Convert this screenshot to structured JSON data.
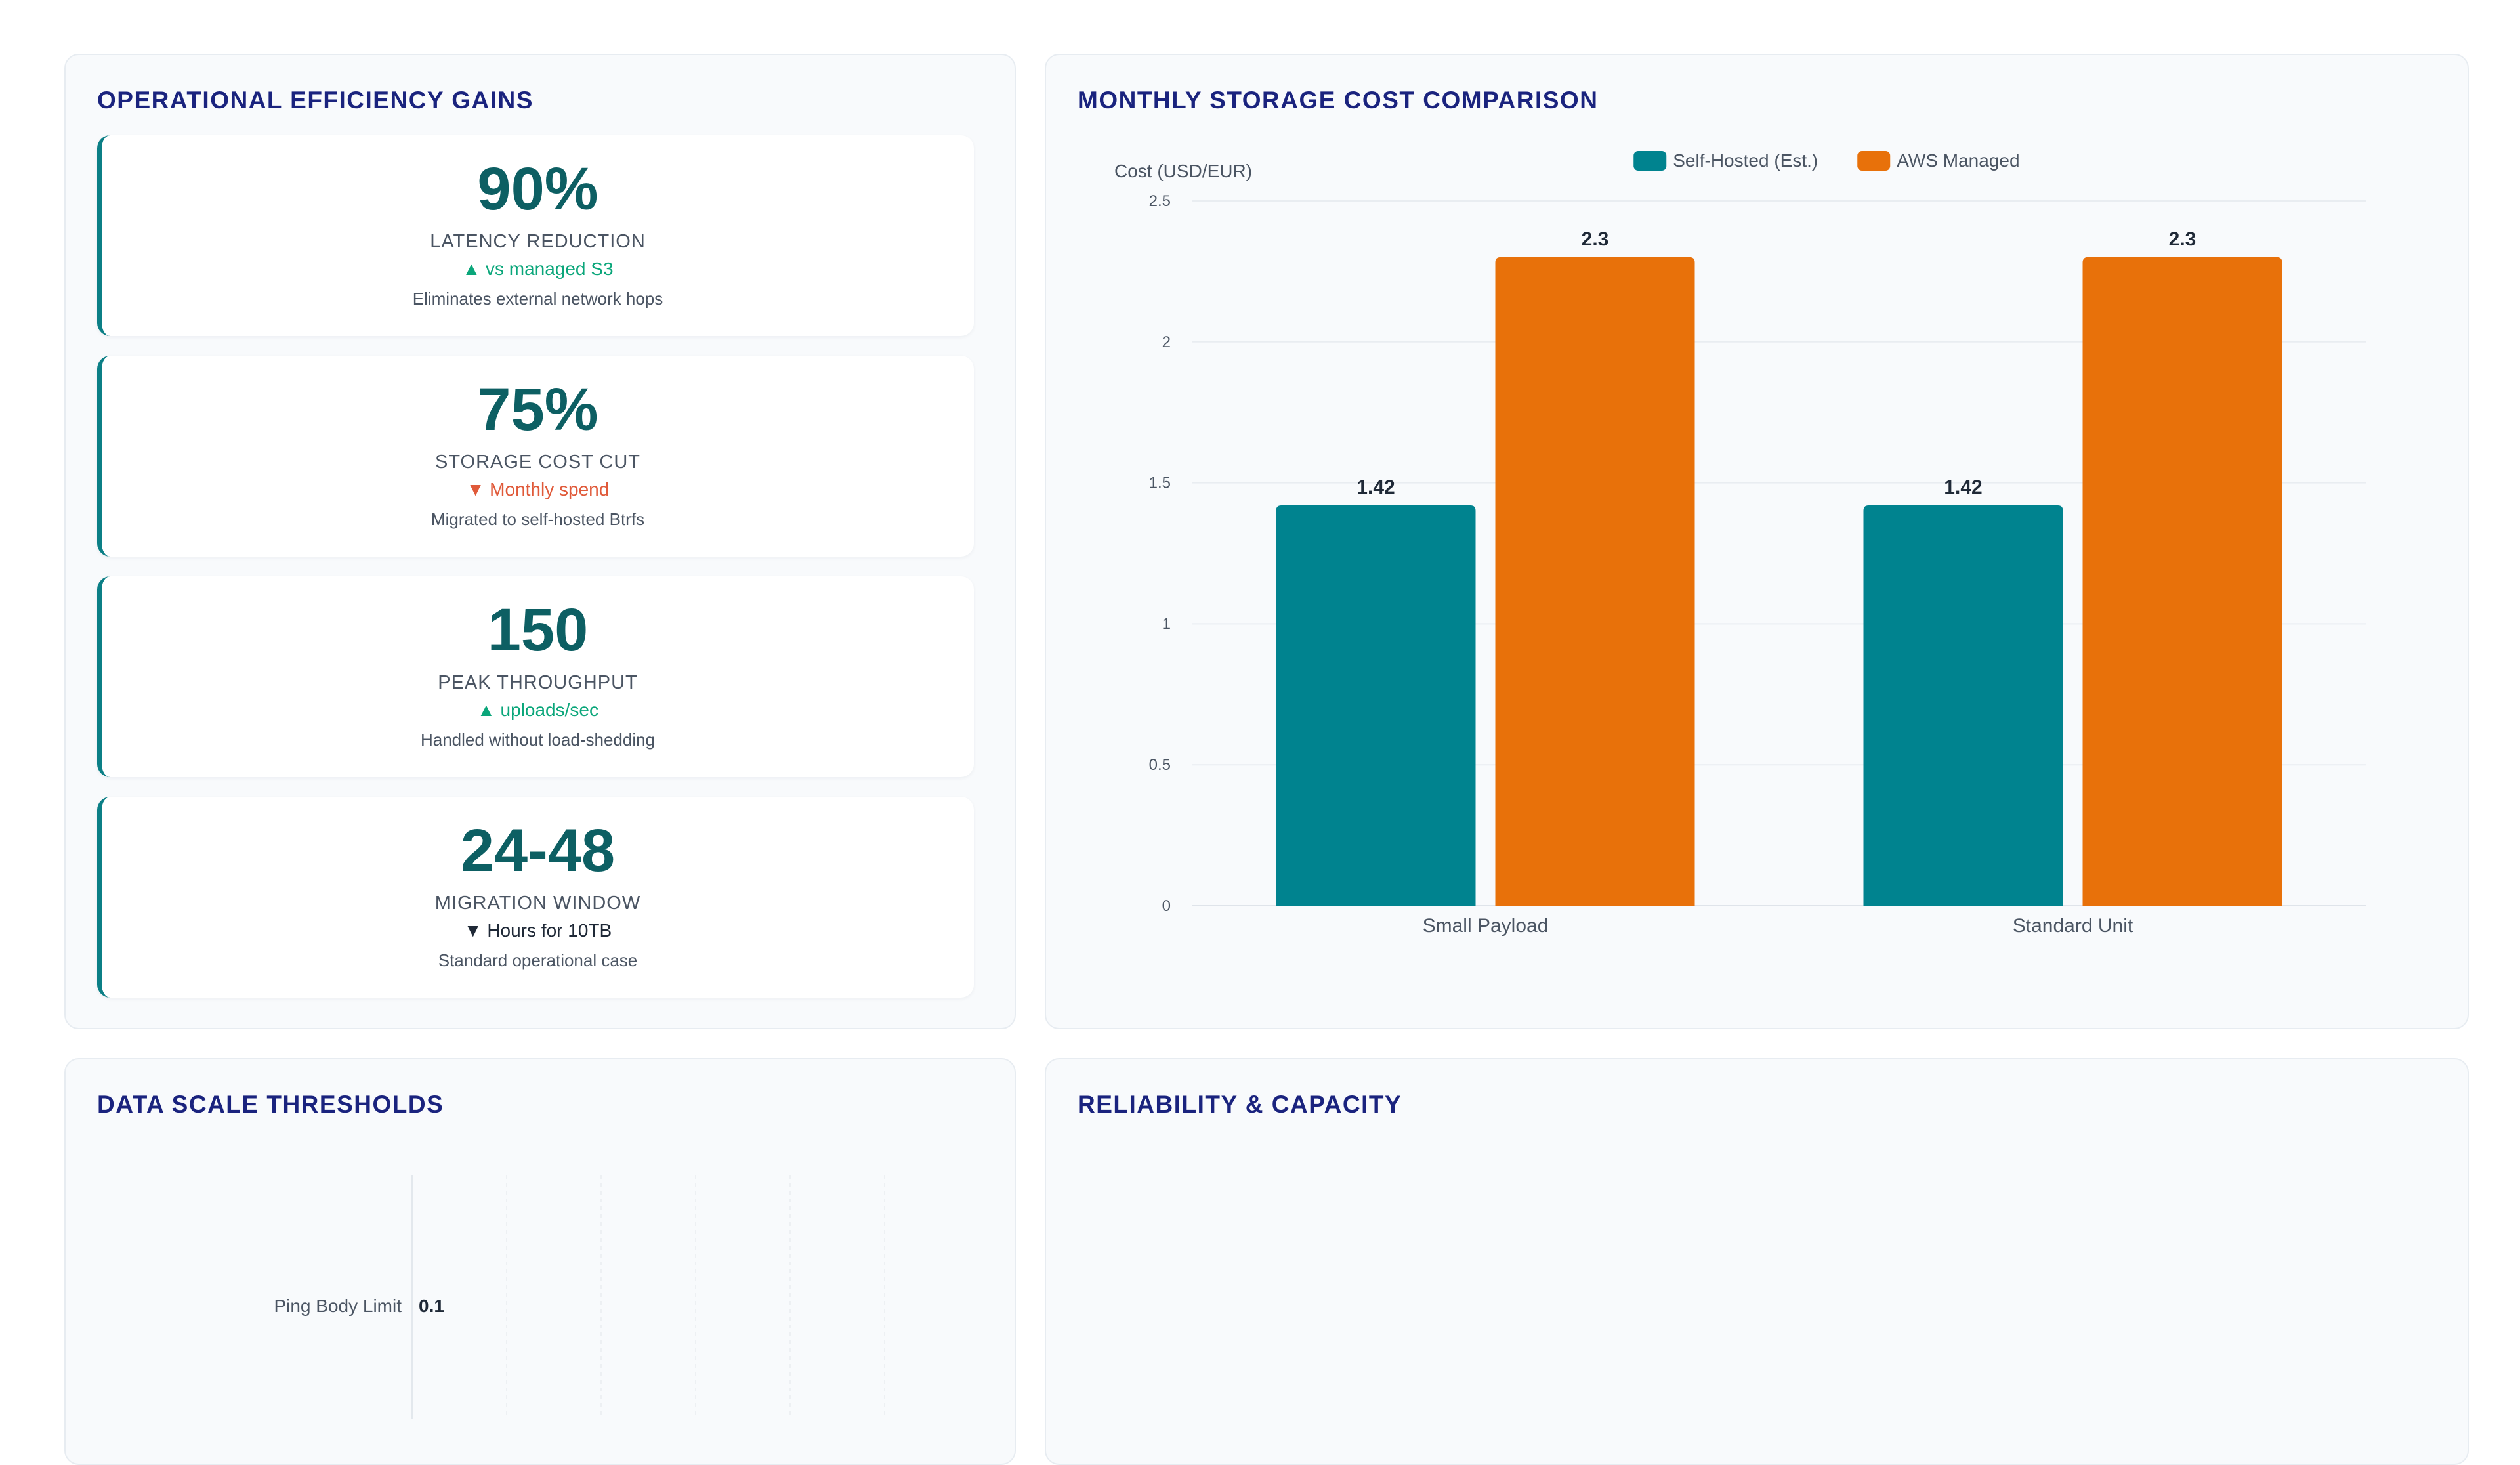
{
  "colors": {
    "accent": "#0b7f86",
    "self_hosted": "#00838f",
    "aws": "#e8710a",
    "up": "#0aa67a",
    "down": "#e05a3a",
    "neutral": "#1f2937",
    "title": "#1a237e"
  },
  "efficiency": {
    "title": "OPERATIONAL EFFICIENCY GAINS",
    "cards": [
      {
        "value": "90%",
        "label": "LATENCY REDUCTION",
        "delta": "▲ vs managed S3",
        "trend": "up",
        "note": "Eliminates external network hops"
      },
      {
        "value": "75%",
        "label": "STORAGE COST CUT",
        "delta": "▼ Monthly spend",
        "trend": "down",
        "note": "Migrated to self-hosted Btrfs"
      },
      {
        "value": "150",
        "label": "PEAK THROUGHPUT",
        "delta": "▲ uploads/sec",
        "trend": "up",
        "note": "Handled without load-shedding"
      },
      {
        "value": "24-48",
        "label": "MIGRATION WINDOW",
        "delta": "▼ Hours for 10TB",
        "trend": "neutral",
        "note": "Standard operational case"
      }
    ]
  },
  "cost_panel": {
    "title": "MONTHLY STORAGE COST COMPARISON"
  },
  "thresholds_panel": {
    "title": "DATA SCALE THRESHOLDS"
  },
  "reliability_panel": {
    "title": "RELIABILITY & CAPACITY"
  },
  "chart_data": [
    {
      "type": "bar",
      "title": "MONTHLY STORAGE COST COMPARISON",
      "ylabel": "Cost (USD/EUR)",
      "xlabel": "",
      "categories": [
        "Small Payload",
        "Standard Unit"
      ],
      "series": [
        {
          "name": "Self-Hosted (Est.)",
          "values": [
            1.42,
            1.42
          ]
        },
        {
          "name": "AWS Managed",
          "values": [
            2.3,
            2.3
          ]
        }
      ],
      "ylim": [
        0,
        2.5
      ],
      "yticks": [
        "0",
        "0.5",
        "1",
        "1.5",
        "2",
        "2.5"
      ],
      "legend": "top-center",
      "grid": true
    },
    {
      "type": "bar",
      "orientation": "horizontal",
      "title": "DATA SCALE THRESHOLDS",
      "categories": [
        "Ping Body Limit"
      ],
      "values": [
        0.1
      ],
      "grid": true
    }
  ]
}
